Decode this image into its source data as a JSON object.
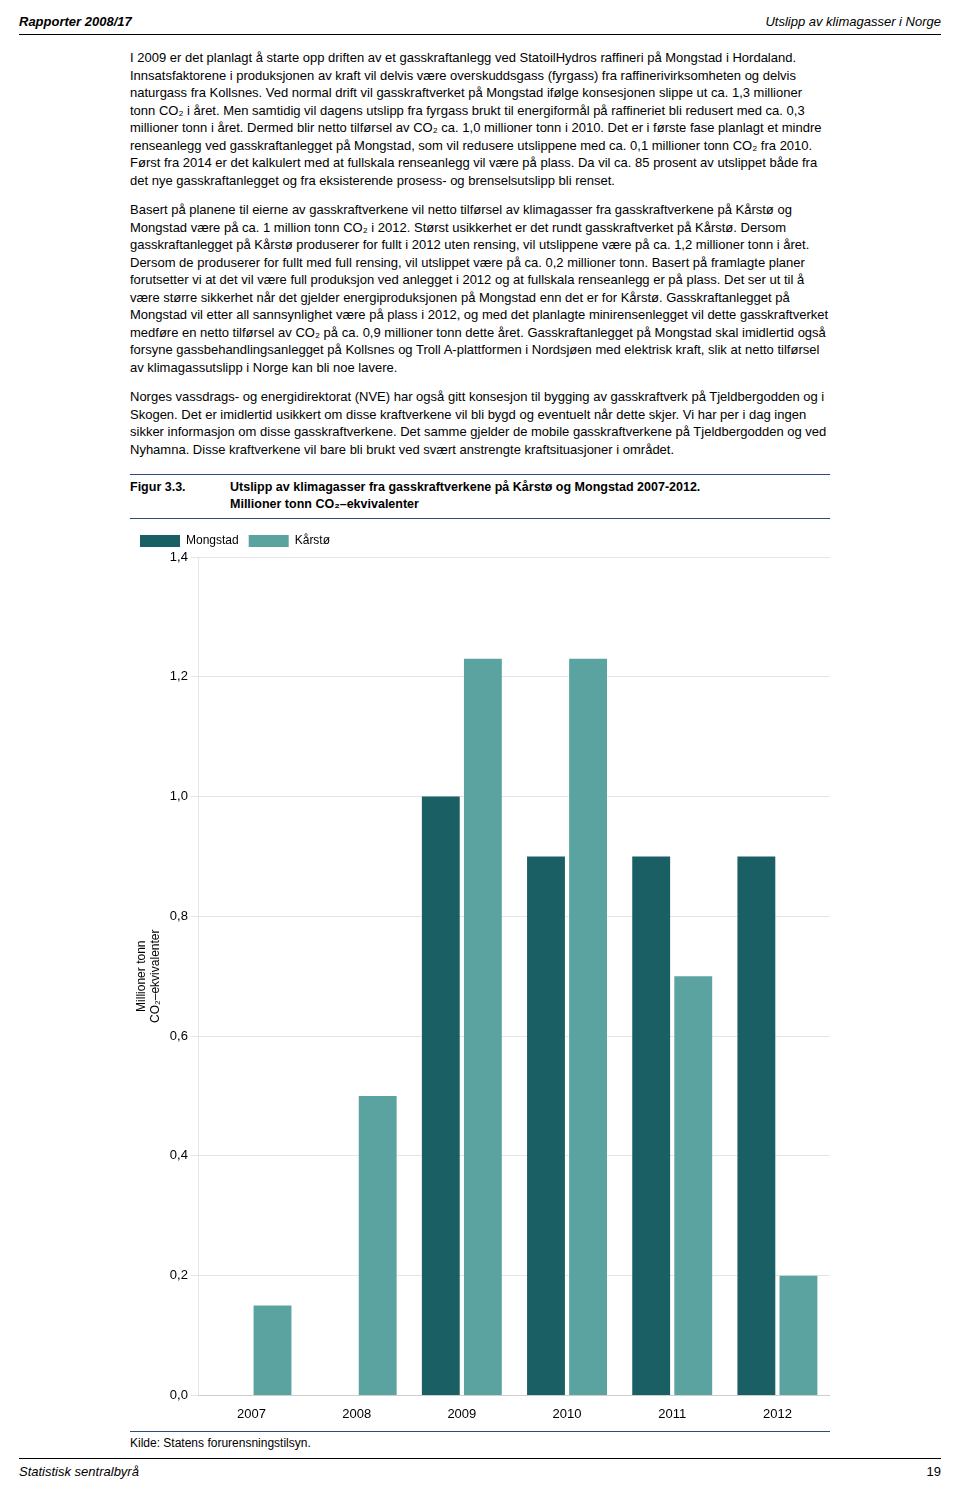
{
  "header_left": "Rapporter 2008/17",
  "header_right": "Utslipp av klimagasser i Norge",
  "paragraphs": [
    "I 2009 er det planlagt å starte opp driften av et gasskraftanlegg ved StatoilHydros raffineri på Mongstad i Hordaland. Innsatsfaktorene i produksjonen av kraft vil delvis være overskuddsgass (fyrgass) fra raffinerivirksomheten og delvis naturgass fra Kollsnes. Ved normal drift vil gasskraftverket på Mongstad ifølge konsesjonen slippe ut ca. 1,3 millioner tonn CO₂ i året. Men samtidig vil dagens utslipp fra fyrgass brukt til energiformål på raffineriet bli redusert med ca. 0,3 millioner tonn i året. Dermed blir netto tilførsel av CO₂ ca. 1,0 millioner tonn i 2010. Det er i første fase planlagt et mindre renseanlegg ved gasskraftanlegget på Mongstad, som vil redusere utslippene med ca. 0,1 millioner tonn CO₂ fra 2010. Først fra 2014 er det kalkulert med at fullskala renseanlegg vil være på plass. Da vil ca. 85 prosent av utslippet både fra det nye gasskraftanlegget og fra eksisterende prosess- og brenselsutslipp bli renset.",
    "Basert på planene til eierne av gasskraftverkene vil netto tilførsel av klimagasser fra gasskraftverkene på Kårstø og Mongstad være på ca. 1 million tonn CO₂ i 2012. Størst usikkerhet er det rundt gasskraftverket på Kårstø. Dersom gasskraftanlegget på Kårstø produserer for fullt i 2012 uten rensing, vil utslippene være på ca. 1,2 millioner tonn i året. Dersom de produserer for fullt med full rensing, vil utslippet være på ca. 0,2 millioner tonn. Basert på framlagte planer forutsetter vi at det vil være full produksjon ved anlegget i 2012 og at fullskala renseanlegg er på plass. Det ser ut til å være større sikkerhet når det gjelder energiproduksjonen på Mongstad enn det er for Kårstø. Gasskraftanlegget på Mongstad vil etter all sannsynlighet være på plass i 2012, og med det planlagte minirensenlegget vil dette gasskraftverket medføre en netto tilførsel av CO₂ på ca. 0,9 millioner tonn dette året. Gasskraftanlegget på Mongstad skal imidlertid også forsyne gassbehandlingsanlegget på Kollsnes og Troll A-plattformen i Nordsjøen med elektrisk kraft, slik at netto tilførsel av klimagassutslipp i Norge kan bli noe lavere.",
    "Norges vassdrags- og energidirektorat (NVE) har også gitt konsesjon til bygging av gasskraftverk på Tjeldbergodden og i Skogen. Det er imidlertid usikkert om disse kraftverkene vil bli bygd og eventuelt når dette skjer. Vi har per i dag ingen sikker informasjon om disse gasskraftverkene. Det samme gjelder de mobile gasskraftverkene på Tjeldbergodden og ved Nyhamna. Disse kraftverkene vil bare bli brukt ved svært anstrengte kraftsituasjoner i området."
  ],
  "figure_label": "Figur 3.3.",
  "source": "Kilde: Statens forurensningstilsyn.",
  "footer_left": "Statistisk sentralbyrå",
  "footer_right": "19",
  "chart_data": {
    "type": "bar",
    "title": "Utslipp av klimagasser fra gasskraftverkene på Kårstø og Mongstad 2007-2012.",
    "subtitle": "Millioner tonn CO₂–ekvivalenter",
    "ylabel": [
      "Millioner tonn",
      "CO₂–ekvivalenter"
    ],
    "categories": [
      "2007",
      "2008",
      "2009",
      "2010",
      "2011",
      "2012"
    ],
    "series": [
      {
        "name": "Mongstad",
        "color": "#1a5f63",
        "values": [
          0.0,
          0.0,
          1.0,
          0.9,
          0.9,
          0.9
        ]
      },
      {
        "name": "Kårstø",
        "color": "#5ba3a0",
        "values": [
          0.15,
          0.5,
          1.23,
          1.23,
          0.7,
          0.2
        ]
      }
    ],
    "ylim": [
      0,
      1.4
    ],
    "yticks": [
      {
        "value": 0.0,
        "label": "0,0"
      },
      {
        "value": 0.2,
        "label": "0,2"
      },
      {
        "value": 0.4,
        "label": "0,4"
      },
      {
        "value": 0.6,
        "label": "0,6"
      },
      {
        "value": 0.8,
        "label": "0,8"
      },
      {
        "value": 1.0,
        "label": "1,0"
      },
      {
        "value": 1.2,
        "label": "1,2"
      },
      {
        "value": 1.4,
        "label": "1,4"
      }
    ],
    "grid": "y",
    "legend": "upper left"
  }
}
